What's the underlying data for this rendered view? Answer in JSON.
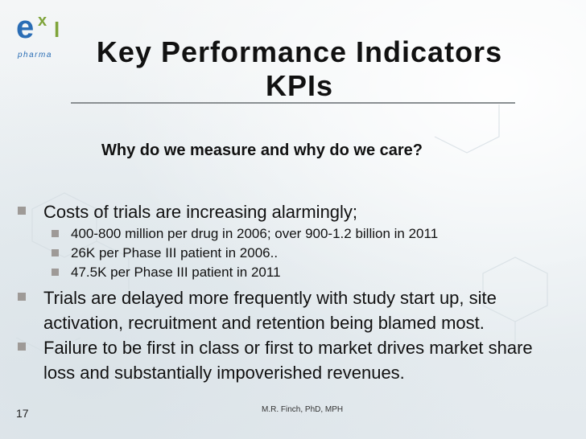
{
  "logo": {
    "e": "e",
    "x": "x",
    "l": "l",
    "pharma": "pharma"
  },
  "title": {
    "line1": "Key Performance Indicators",
    "line2": "KPIs"
  },
  "subheading": "Why do we measure and why do we care?",
  "bullets": [
    {
      "text": "Costs of trials are increasing alarmingly;",
      "subs": [
        "400-800 million per drug in 2006; over 900-1.2 billion in 2011",
        "26K per Phase III patient in 2006..",
        "47.5K per Phase III patient in 2011"
      ]
    },
    {
      "text": "Trials are delayed more frequently with study start up, site activation, recruitment and retention being blamed most."
    },
    {
      "text": "Failure to be first in class or first to market drives market share loss and substantially impoverished revenues."
    }
  ],
  "footer": {
    "page_number": "17",
    "author": "M.R. Finch, PhD, MPH"
  },
  "colors": {
    "logo_blue": "#2a6db5",
    "logo_green": "#7fa43a",
    "bullet_gray": "#9e9a97"
  }
}
